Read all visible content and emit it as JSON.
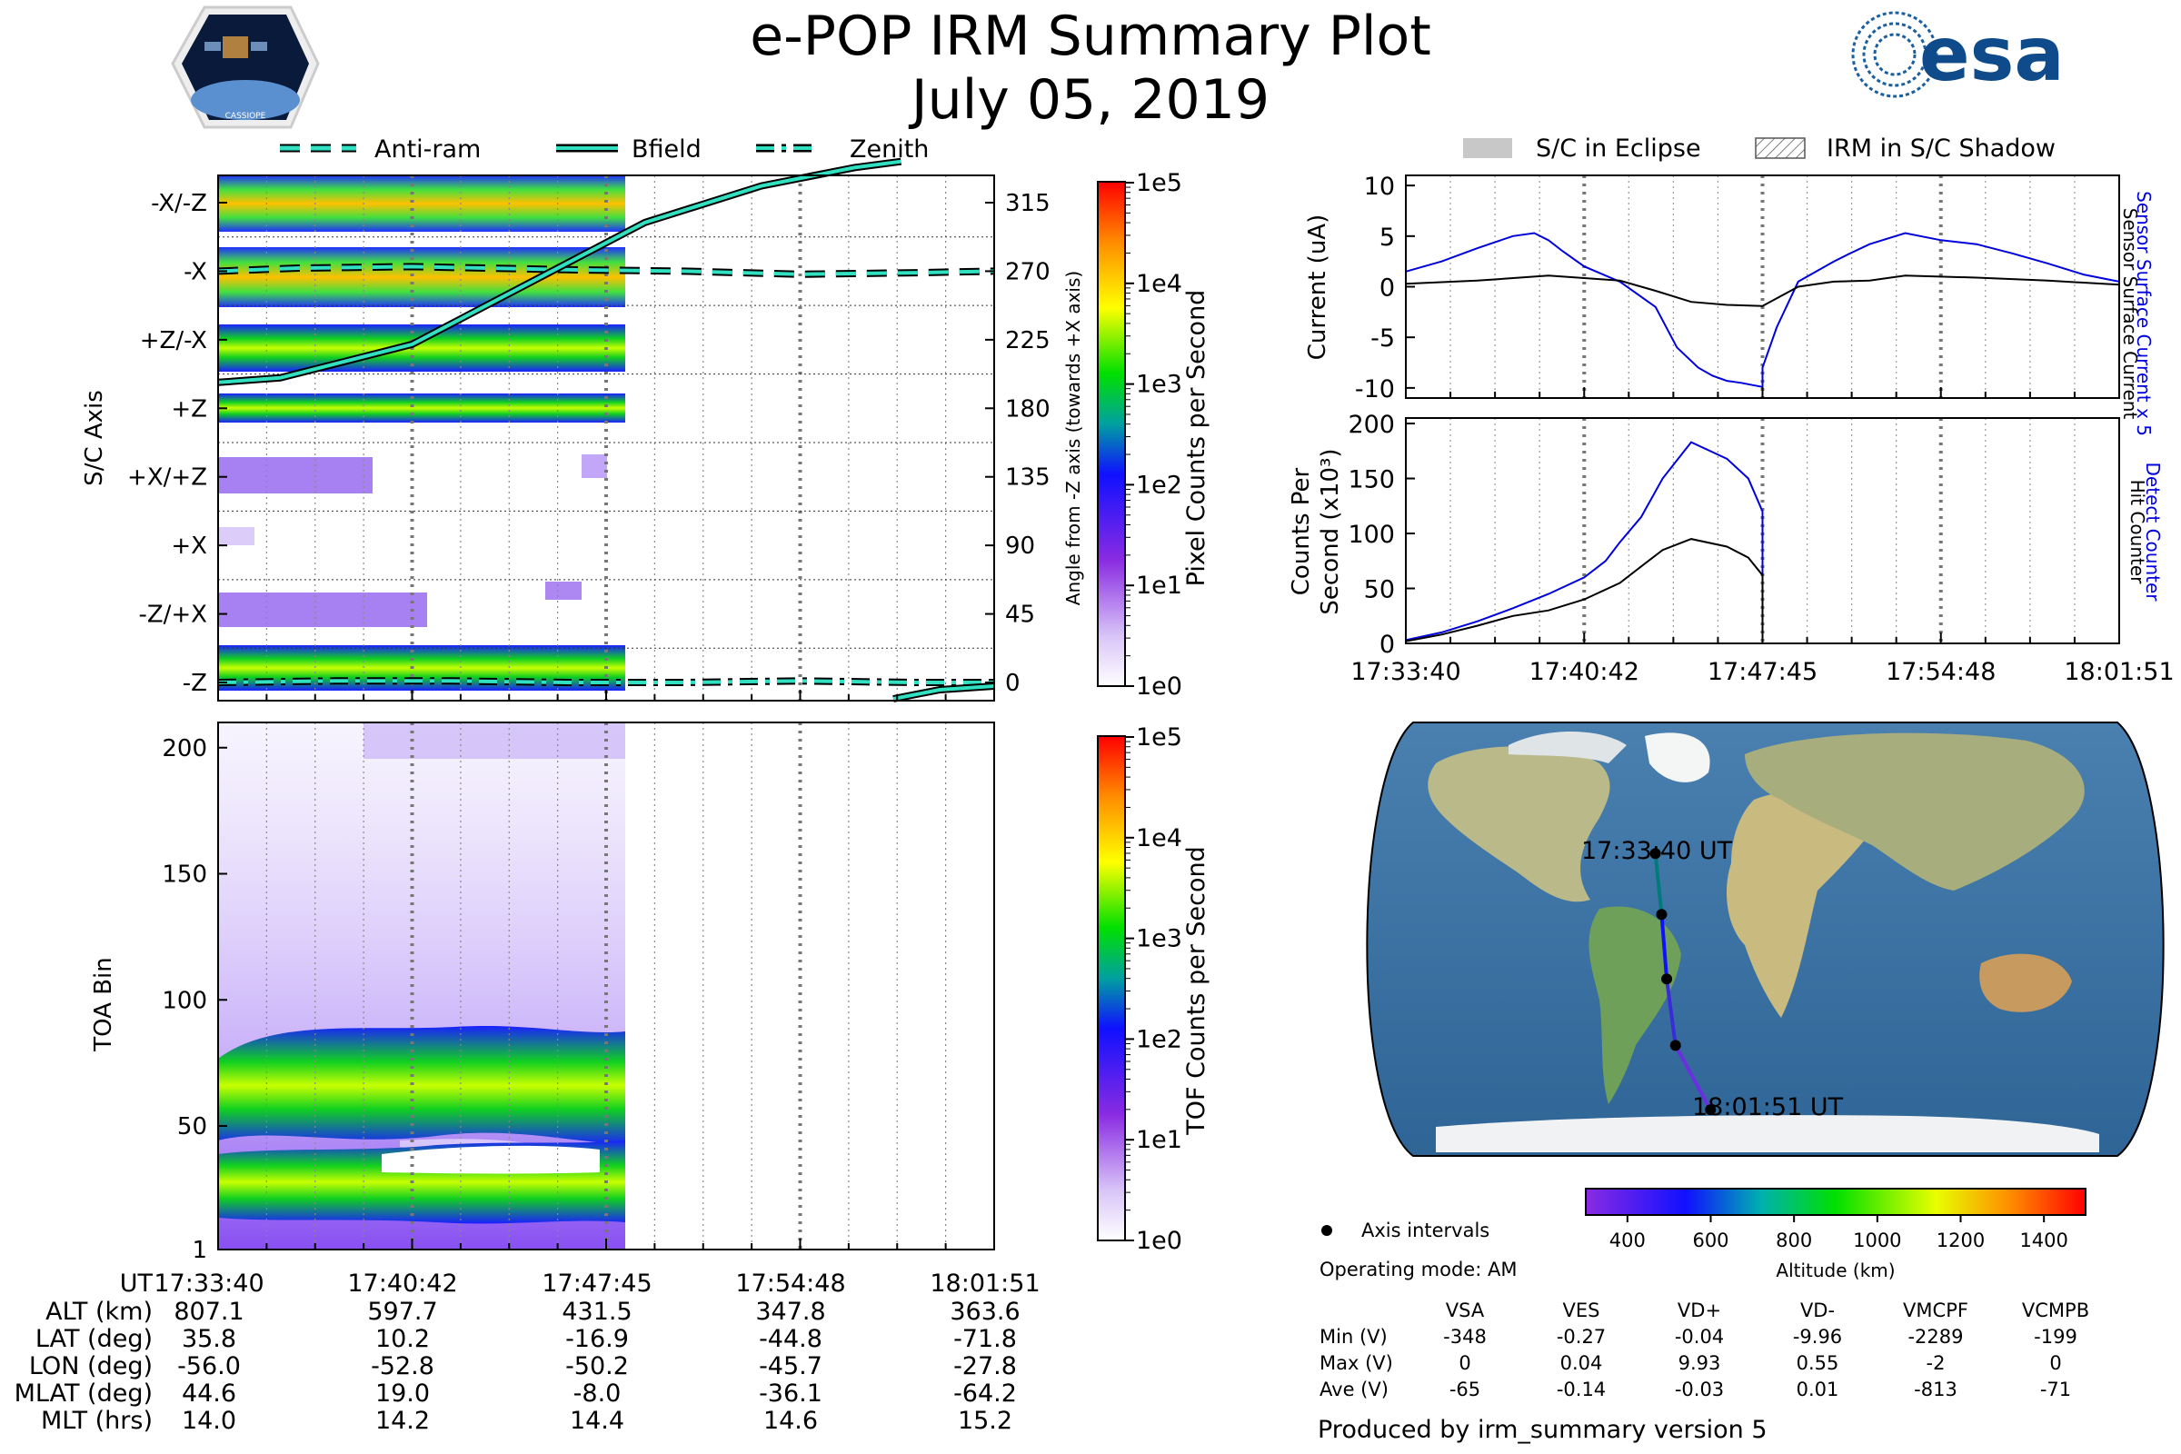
{
  "header": {
    "title": "e-POP IRM Summary Plot",
    "date": "July 05, 2019",
    "logo_left": "CASSIOPE",
    "logo_right": "esa"
  },
  "legend_top": {
    "anti_ram": "Anti-ram",
    "bfield": "Bfield",
    "zenith": "Zenith"
  },
  "legend_right": {
    "eclipse": "S/C in Eclipse",
    "shadow": "IRM in S/C Shadow"
  },
  "chart_data": [
    {
      "type": "heatmap",
      "name": "sc-axis-panel",
      "ylabel": "S/C Axis",
      "y_categories": [
        "-X/-Z",
        "-X",
        "+Z/-X",
        "+Z",
        "+X/+Z",
        "+X",
        "-Z/+X",
        "-Z"
      ],
      "right_ylabel": "Angle from -Z axis (towards +X axis)",
      "right_ticks": [
        315,
        270,
        225,
        180,
        135,
        90,
        45,
        0
      ],
      "colorbar_label": "Pixel Counts per Second",
      "colorbar_ticks": [
        "1e5",
        "1e4",
        "1e3",
        "1e2",
        "1e1",
        "1e0"
      ],
      "data_end_time": "17:47:45",
      "lines": [
        {
          "name": "Anti-ram",
          "angle": [
            270,
            272,
            273,
            271,
            270,
            268,
            269,
            270
          ],
          "t": [
            0,
            0.1,
            0.25,
            0.45,
            0.6,
            0.75,
            0.9,
            1.0
          ]
        },
        {
          "name": "Bfield",
          "angle": [
            197,
            200,
            222,
            262,
            302,
            326,
            338,
            342
          ],
          "t": [
            0,
            0.08,
            0.25,
            0.4,
            0.55,
            0.7,
            0.82,
            0.88
          ]
        },
        {
          "name": "Zenith",
          "angle": [
            0,
            1,
            1,
            0,
            0,
            1,
            0,
            0
          ],
          "t": [
            0,
            0.15,
            0.3,
            0.45,
            0.6,
            0.75,
            0.9,
            1.0
          ]
        }
      ]
    },
    {
      "type": "heatmap",
      "name": "toa-panel",
      "ylabel": "TOA Bin",
      "yticks": [
        1,
        50,
        100,
        150,
        200
      ],
      "ylim": [
        1,
        210
      ],
      "colorbar_label": "TOF Counts per Second",
      "colorbar_ticks": [
        "1e5",
        "1e4",
        "1e3",
        "1e2",
        "1e1",
        "1e0"
      ],
      "data_end_time": "17:47:45"
    },
    {
      "type": "line",
      "name": "current-panel",
      "ylabel": "Current (uA)",
      "yticks": [
        10,
        5,
        0,
        -5,
        -10
      ],
      "ylim": [
        -11,
        11
      ],
      "right_labels": [
        "Sensor Surface Current x 5",
        "Sensor Surface Current"
      ],
      "series": [
        {
          "name": "Sensor Surface Current x 5",
          "color": "#0000dd",
          "t": [
            0,
            0.05,
            0.1,
            0.15,
            0.18,
            0.2,
            0.22,
            0.25,
            0.3,
            0.35,
            0.38,
            0.41,
            0.43,
            0.45,
            0.47,
            0.5,
            0.5,
            0.52,
            0.55,
            0.6,
            0.62,
            0.65,
            0.7,
            0.75,
            0.8,
            0.85,
            0.9,
            0.95,
            1.0
          ],
          "values": [
            1.5,
            2.5,
            3.8,
            5.0,
            5.3,
            4.6,
            3.5,
            2.0,
            0.5,
            -2.0,
            -6.0,
            -8.0,
            -8.8,
            -9.3,
            -9.5,
            -9.9,
            -8.0,
            -4.0,
            0.5,
            2.5,
            3.2,
            4.2,
            5.3,
            4.6,
            4.2,
            3.3,
            2.3,
            1.2,
            0.5
          ]
        },
        {
          "name": "Sensor Surface Current",
          "color": "#000000",
          "t": [
            0,
            0.1,
            0.2,
            0.3,
            0.35,
            0.4,
            0.45,
            0.5,
            0.55,
            0.6,
            0.65,
            0.7,
            0.8,
            0.9,
            1.0
          ],
          "values": [
            0.3,
            0.6,
            1.1,
            0.6,
            -0.4,
            -1.5,
            -1.8,
            -1.9,
            0.0,
            0.5,
            0.6,
            1.1,
            0.9,
            0.6,
            0.2
          ]
        }
      ]
    },
    {
      "type": "line",
      "name": "counts-panel",
      "ylabel": "Counts Per Second (x10^3)",
      "yticks": [
        0,
        50,
        100,
        150,
        200
      ],
      "ylim": [
        0,
        205
      ],
      "right_labels": [
        "Detect Counter",
        "Hit Counter"
      ],
      "x_ticks": [
        "17:33:40",
        "17:40:42",
        "17:47:45",
        "17:54:48",
        "18:01:51"
      ],
      "series": [
        {
          "name": "Detect Counter",
          "color": "#0000dd",
          "t": [
            0,
            0.05,
            0.1,
            0.15,
            0.2,
            0.25,
            0.28,
            0.3,
            0.33,
            0.36,
            0.4,
            0.45,
            0.48,
            0.5,
            0.5,
            1.0
          ],
          "values": [
            3,
            10,
            20,
            32,
            45,
            60,
            75,
            92,
            115,
            150,
            183,
            168,
            150,
            120,
            0,
            0
          ]
        },
        {
          "name": "Hit Counter",
          "color": "#000000",
          "t": [
            0,
            0.05,
            0.1,
            0.15,
            0.2,
            0.25,
            0.3,
            0.33,
            0.36,
            0.4,
            0.45,
            0.48,
            0.5,
            0.5,
            1.0
          ],
          "values": [
            2,
            8,
            16,
            25,
            30,
            40,
            55,
            70,
            85,
            95,
            88,
            78,
            62,
            0,
            0
          ]
        }
      ]
    }
  ],
  "time_axis": {
    "labels": [
      "UT",
      "ALT (km)",
      "LAT (deg)",
      "LON (deg)",
      "MLAT (deg)",
      "MLT (hrs)"
    ],
    "columns": [
      [
        "17:33:40",
        "807.1",
        "35.8",
        "-56.0",
        "44.6",
        "14.0"
      ],
      [
        "17:40:42",
        "597.7",
        "10.2",
        "-52.8",
        "19.0",
        "14.2"
      ],
      [
        "17:47:45",
        "431.5",
        "-16.9",
        "-50.2",
        "-8.0",
        "14.4"
      ],
      [
        "17:54:48",
        "347.8",
        "-44.8",
        "-45.7",
        "-36.1",
        "14.6"
      ],
      [
        "18:01:51",
        "363.6",
        "-71.8",
        "-27.8",
        "-64.2",
        "15.2"
      ]
    ]
  },
  "map": {
    "start_label": "17:33:40 UT",
    "end_label": "18:01:51 UT",
    "track_points": [
      {
        "lat": 35.8,
        "lon": -56.0
      },
      {
        "lat": 10.2,
        "lon": -52.8
      },
      {
        "lat": -16.9,
        "lon": -50.2
      },
      {
        "lat": -44.8,
        "lon": -45.7
      },
      {
        "lat": -71.8,
        "lon": -27.8
      }
    ],
    "altitude_colorbar": {
      "label": "Altitude (km)",
      "ticks": [
        "400",
        "600",
        "800",
        "1000",
        "1200",
        "1400"
      ],
      "min": 300,
      "max": 1500
    },
    "axis_intervals_label": "Axis intervals",
    "operating_mode": "Operating mode: AM"
  },
  "voltage_table": {
    "columns": [
      "VSA",
      "VES",
      "VD+",
      "VD-",
      "VMCPF",
      "VCMPB"
    ],
    "rows": [
      {
        "label": "Min (V)",
        "values": [
          "-348",
          "-0.27",
          "-0.04",
          "-9.96",
          "-2289",
          "-199"
        ]
      },
      {
        "label": "Max (V)",
        "values": [
          "0",
          "0.04",
          "9.93",
          "0.55",
          "-2",
          "0"
        ]
      },
      {
        "label": "Ave (V)",
        "values": [
          "-65",
          "-0.14",
          "-0.03",
          "0.01",
          "-813",
          "-71"
        ]
      }
    ]
  },
  "footer": "Produced by irm_summary version 5"
}
